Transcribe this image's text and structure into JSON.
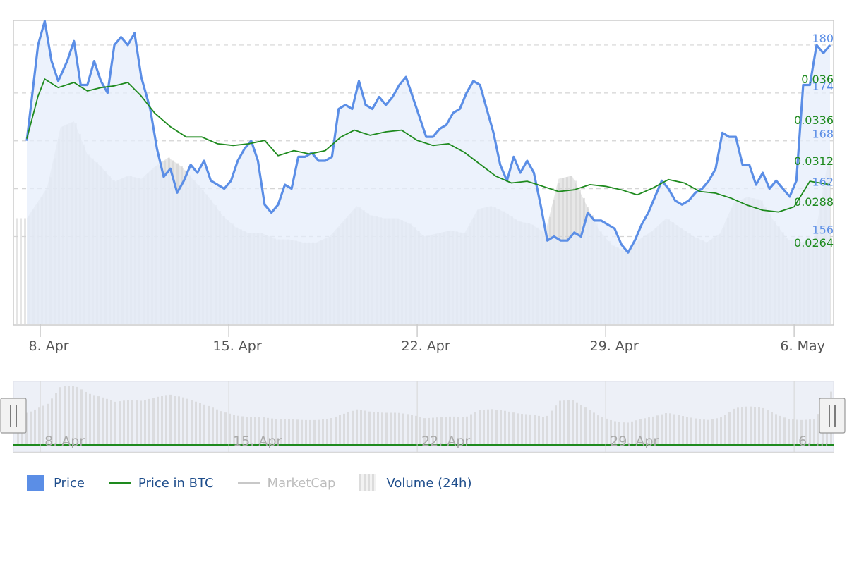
{
  "chart_data": {
    "type": "line",
    "x_axis": {
      "type": "date",
      "ticks": [
        "8. Apr",
        "15. Apr",
        "22. Apr",
        "29. Apr",
        "6. May"
      ],
      "range": [
        "2024-04-07T12:00",
        "2024-05-07T08:00"
      ]
    },
    "y_axes": [
      {
        "series": "Price",
        "ticks": [
          "156",
          "162",
          "168",
          "174",
          "180"
        ],
        "range": [
          145,
          183
        ],
        "color": "#5b8ee6"
      },
      {
        "series": "Price in BTC",
        "ticks": [
          "0.0264",
          "0.0288",
          "0.0312",
          "0.0336",
          "0.036"
        ],
        "range": [
          0.0216,
          0.0394
        ],
        "color": "#1e8a1e"
      }
    ],
    "grid": true,
    "legend_position": "bottom-left",
    "series": [
      {
        "name": "Price",
        "kind": "area-line",
        "color": "#5b8ee6",
        "points": [
          [
            "2024-04-07T12:00",
            168.0
          ],
          [
            "2024-04-07T22:00",
            180.0
          ],
          [
            "2024-04-08T04:00",
            183.0
          ],
          [
            "2024-04-08T10:00",
            178.0
          ],
          [
            "2024-04-08T16:00",
            175.5
          ],
          [
            "2024-04-09T00:00",
            178.0
          ],
          [
            "2024-04-09T06:00",
            180.5
          ],
          [
            "2024-04-09T12:00",
            175.0
          ],
          [
            "2024-04-09T18:00",
            175.0
          ],
          [
            "2024-04-10T00:00",
            178.0
          ],
          [
            "2024-04-10T06:00",
            175.5
          ],
          [
            "2024-04-10T12:00",
            174.0
          ],
          [
            "2024-04-10T18:00",
            180.0
          ],
          [
            "2024-04-11T00:00",
            181.0
          ],
          [
            "2024-04-11T06:00",
            180.0
          ],
          [
            "2024-04-11T12:00",
            181.5
          ],
          [
            "2024-04-11T18:00",
            176.0
          ],
          [
            "2024-04-12T02:00",
            172.0
          ],
          [
            "2024-04-12T08:00",
            167.0
          ],
          [
            "2024-04-12T14:00",
            163.5
          ],
          [
            "2024-04-12T20:00",
            164.5
          ],
          [
            "2024-04-13T02:00",
            161.5
          ],
          [
            "2024-04-13T08:00",
            163.0
          ],
          [
            "2024-04-13T14:00",
            165.0
          ],
          [
            "2024-04-13T20:00",
            164.0
          ],
          [
            "2024-04-14T02:00",
            165.5
          ],
          [
            "2024-04-14T08:00",
            163.0
          ],
          [
            "2024-04-14T14:00",
            162.5
          ],
          [
            "2024-04-14T20:00",
            162.0
          ],
          [
            "2024-04-15T02:00",
            163.0
          ],
          [
            "2024-04-15T08:00",
            165.5
          ],
          [
            "2024-04-15T14:00",
            167.0
          ],
          [
            "2024-04-15T20:00",
            168.0
          ],
          [
            "2024-04-16T02:00",
            165.5
          ],
          [
            "2024-04-16T08:00",
            160.0
          ],
          [
            "2024-04-16T14:00",
            159.0
          ],
          [
            "2024-04-16T20:00",
            160.0
          ],
          [
            "2024-04-17T02:00",
            162.5
          ],
          [
            "2024-04-17T08:00",
            162.0
          ],
          [
            "2024-04-17T14:00",
            166.0
          ],
          [
            "2024-04-17T20:00",
            166.0
          ],
          [
            "2024-04-18T02:00",
            166.5
          ],
          [
            "2024-04-18T08:00",
            165.5
          ],
          [
            "2024-04-18T14:00",
            165.5
          ],
          [
            "2024-04-18T20:00",
            166.0
          ],
          [
            "2024-04-19T02:00",
            172.0
          ],
          [
            "2024-04-19T08:00",
            172.5
          ],
          [
            "2024-04-19T14:00",
            172.0
          ],
          [
            "2024-04-19T20:00",
            175.5
          ],
          [
            "2024-04-20T02:00",
            172.5
          ],
          [
            "2024-04-20T08:00",
            172.0
          ],
          [
            "2024-04-20T14:00",
            173.5
          ],
          [
            "2024-04-20T20:00",
            172.5
          ],
          [
            "2024-04-21T02:00",
            173.5
          ],
          [
            "2024-04-21T08:00",
            175.0
          ],
          [
            "2024-04-21T14:00",
            176.0
          ],
          [
            "2024-04-21T20:00",
            173.5
          ],
          [
            "2024-04-22T02:00",
            171.0
          ],
          [
            "2024-04-22T08:00",
            168.5
          ],
          [
            "2024-04-22T14:00",
            168.5
          ],
          [
            "2024-04-22T20:00",
            169.5
          ],
          [
            "2024-04-23T02:00",
            170.0
          ],
          [
            "2024-04-23T08:00",
            171.5
          ],
          [
            "2024-04-23T14:00",
            172.0
          ],
          [
            "2024-04-23T20:00",
            174.0
          ],
          [
            "2024-04-24T02:00",
            175.5
          ],
          [
            "2024-04-24T08:00",
            175.0
          ],
          [
            "2024-04-24T14:00",
            172.0
          ],
          [
            "2024-04-24T20:00",
            169.0
          ],
          [
            "2024-04-25T02:00",
            165.0
          ],
          [
            "2024-04-25T08:00",
            163.0
          ],
          [
            "2024-04-25T14:00",
            166.0
          ],
          [
            "2024-04-25T20:00",
            164.0
          ],
          [
            "2024-04-26T02:00",
            165.5
          ],
          [
            "2024-04-26T08:00",
            164.0
          ],
          [
            "2024-04-26T14:00",
            160.0
          ],
          [
            "2024-04-26T20:00",
            155.5
          ],
          [
            "2024-04-27T02:00",
            156.0
          ],
          [
            "2024-04-27T08:00",
            155.5
          ],
          [
            "2024-04-27T14:00",
            155.5
          ],
          [
            "2024-04-27T20:00",
            156.5
          ],
          [
            "2024-04-28T02:00",
            156.0
          ],
          [
            "2024-04-28T08:00",
            159.0
          ],
          [
            "2024-04-28T14:00",
            158.0
          ],
          [
            "2024-04-28T20:00",
            158.0
          ],
          [
            "2024-04-29T02:00",
            157.5
          ],
          [
            "2024-04-29T08:00",
            157.0
          ],
          [
            "2024-04-29T14:00",
            155.0
          ],
          [
            "2024-04-29T20:00",
            154.0
          ],
          [
            "2024-04-30T02:00",
            155.5
          ],
          [
            "2024-04-30T08:00",
            157.5
          ],
          [
            "2024-04-30T14:00",
            159.0
          ],
          [
            "2024-04-30T20:00",
            161.0
          ],
          [
            "2024-05-01T02:00",
            163.0
          ],
          [
            "2024-05-01T08:00",
            162.0
          ],
          [
            "2024-05-01T14:00",
            160.5
          ],
          [
            "2024-05-01T20:00",
            160.0
          ],
          [
            "2024-05-02T02:00",
            160.5
          ],
          [
            "2024-05-02T08:00",
            161.5
          ],
          [
            "2024-05-02T14:00",
            162.0
          ],
          [
            "2024-05-02T20:00",
            163.0
          ],
          [
            "2024-05-03T02:00",
            164.5
          ],
          [
            "2024-05-03T08:00",
            169.0
          ],
          [
            "2024-05-03T14:00",
            168.5
          ],
          [
            "2024-05-03T20:00",
            168.5
          ],
          [
            "2024-05-04T02:00",
            165.0
          ],
          [
            "2024-05-04T08:00",
            165.0
          ],
          [
            "2024-05-04T14:00",
            162.5
          ],
          [
            "2024-05-04T20:00",
            164.0
          ],
          [
            "2024-05-05T02:00",
            162.0
          ],
          [
            "2024-05-05T08:00",
            163.0
          ],
          [
            "2024-05-05T14:00",
            162.0
          ],
          [
            "2024-05-05T20:00",
            161.0
          ],
          [
            "2024-05-06T02:00",
            163.0
          ],
          [
            "2024-05-06T08:00",
            175.0
          ],
          [
            "2024-05-06T14:00",
            175.0
          ],
          [
            "2024-05-06T20:00",
            180.0
          ],
          [
            "2024-05-07T02:00",
            179.0
          ],
          [
            "2024-05-07T08:00",
            180.0
          ]
        ]
      },
      {
        "name": "Price in BTC",
        "kind": "line",
        "color": "#1e8a1e",
        "points": [
          [
            "2024-04-07T12:00",
            0.0325
          ],
          [
            "2024-04-07T22:00",
            0.035
          ],
          [
            "2024-04-08T04:00",
            0.036
          ],
          [
            "2024-04-08T16:00",
            0.0355
          ],
          [
            "2024-04-09T06:00",
            0.0358
          ],
          [
            "2024-04-09T18:00",
            0.0353
          ],
          [
            "2024-04-10T06:00",
            0.0355
          ],
          [
            "2024-04-10T18:00",
            0.0356
          ],
          [
            "2024-04-11T06:00",
            0.0358
          ],
          [
            "2024-04-11T18:00",
            0.035
          ],
          [
            "2024-04-12T06:00",
            0.034
          ],
          [
            "2024-04-12T20:00",
            0.0332
          ],
          [
            "2024-04-13T10:00",
            0.0326
          ],
          [
            "2024-04-14T00:00",
            0.0326
          ],
          [
            "2024-04-14T14:00",
            0.0322
          ],
          [
            "2024-04-15T04:00",
            0.0321
          ],
          [
            "2024-04-15T18:00",
            0.0322
          ],
          [
            "2024-04-16T08:00",
            0.0324
          ],
          [
            "2024-04-16T20:00",
            0.0315
          ],
          [
            "2024-04-17T10:00",
            0.0318
          ],
          [
            "2024-04-18T00:00",
            0.0316
          ],
          [
            "2024-04-18T14:00",
            0.0318
          ],
          [
            "2024-04-19T04:00",
            0.0326
          ],
          [
            "2024-04-19T16:00",
            0.033
          ],
          [
            "2024-04-20T06:00",
            0.0327
          ],
          [
            "2024-04-20T20:00",
            0.0329
          ],
          [
            "2024-04-21T10:00",
            0.033
          ],
          [
            "2024-04-22T00:00",
            0.0324
          ],
          [
            "2024-04-22T14:00",
            0.0321
          ],
          [
            "2024-04-23T04:00",
            0.0322
          ],
          [
            "2024-04-23T18:00",
            0.0317
          ],
          [
            "2024-04-24T08:00",
            0.031
          ],
          [
            "2024-04-24T22:00",
            0.0303
          ],
          [
            "2024-04-25T12:00",
            0.0299
          ],
          [
            "2024-04-26T02:00",
            0.03
          ],
          [
            "2024-04-26T16:00",
            0.0297
          ],
          [
            "2024-04-27T06:00",
            0.0294
          ],
          [
            "2024-04-27T20:00",
            0.0295
          ],
          [
            "2024-04-28T10:00",
            0.0298
          ],
          [
            "2024-04-29T00:00",
            0.0297
          ],
          [
            "2024-04-29T14:00",
            0.0295
          ],
          [
            "2024-04-30T04:00",
            0.0292
          ],
          [
            "2024-04-30T18:00",
            0.0296
          ],
          [
            "2024-05-01T08:00",
            0.0301
          ],
          [
            "2024-05-01T22:00",
            0.0299
          ],
          [
            "2024-05-02T12:00",
            0.0294
          ],
          [
            "2024-05-03T02:00",
            0.0293
          ],
          [
            "2024-05-03T16:00",
            0.029
          ],
          [
            "2024-05-04T06:00",
            0.0286
          ],
          [
            "2024-05-04T20:00",
            0.0283
          ],
          [
            "2024-05-05T10:00",
            0.0282
          ],
          [
            "2024-05-06T00:00",
            0.0285
          ],
          [
            "2024-05-06T14:00",
            0.03
          ],
          [
            "2024-05-07T08:00",
            0.0298
          ]
        ]
      },
      {
        "name": "MarketCap",
        "kind": "line",
        "visible": false,
        "points": []
      },
      {
        "name": "Volume (24h)",
        "kind": "area",
        "color": "#d9d9d9",
        "points": [
          [
            "2024-04-07T12:00",
            0.35
          ],
          [
            "2024-04-08T06:00",
            0.45
          ],
          [
            "2024-04-08T18:00",
            0.65
          ],
          [
            "2024-04-09T06:00",
            0.67
          ],
          [
            "2024-04-09T18:00",
            0.56
          ],
          [
            "2024-04-10T06:00",
            0.52
          ],
          [
            "2024-04-10T18:00",
            0.47
          ],
          [
            "2024-04-11T06:00",
            0.49
          ],
          [
            "2024-04-11T18:00",
            0.48
          ],
          [
            "2024-04-12T06:00",
            0.52
          ],
          [
            "2024-04-12T18:00",
            0.55
          ],
          [
            "2024-04-13T06:00",
            0.52
          ],
          [
            "2024-04-13T18:00",
            0.47
          ],
          [
            "2024-04-14T06:00",
            0.42
          ],
          [
            "2024-04-14T18:00",
            0.36
          ],
          [
            "2024-04-15T06:00",
            0.32
          ],
          [
            "2024-04-15T18:00",
            0.3
          ],
          [
            "2024-04-16T06:00",
            0.3
          ],
          [
            "2024-04-16T18:00",
            0.28
          ],
          [
            "2024-04-17T06:00",
            0.28
          ],
          [
            "2024-04-17T18:00",
            0.27
          ],
          [
            "2024-04-18T06:00",
            0.27
          ],
          [
            "2024-04-18T18:00",
            0.29
          ],
          [
            "2024-04-19T06:00",
            0.34
          ],
          [
            "2024-04-19T18:00",
            0.39
          ],
          [
            "2024-04-20T06:00",
            0.36
          ],
          [
            "2024-04-20T18:00",
            0.35
          ],
          [
            "2024-04-21T06:00",
            0.35
          ],
          [
            "2024-04-21T18:00",
            0.33
          ],
          [
            "2024-04-22T06:00",
            0.29
          ],
          [
            "2024-04-22T18:00",
            0.3
          ],
          [
            "2024-04-23T06:00",
            0.31
          ],
          [
            "2024-04-23T18:00",
            0.3
          ],
          [
            "2024-04-24T06:00",
            0.38
          ],
          [
            "2024-04-24T18:00",
            0.39
          ],
          [
            "2024-04-25T06:00",
            0.37
          ],
          [
            "2024-04-25T18:00",
            0.34
          ],
          [
            "2024-04-26T06:00",
            0.33
          ],
          [
            "2024-04-26T18:00",
            0.3
          ],
          [
            "2024-04-27T06:00",
            0.48
          ],
          [
            "2024-04-27T18:00",
            0.49
          ],
          [
            "2024-04-28T06:00",
            0.4
          ],
          [
            "2024-04-28T18:00",
            0.31
          ],
          [
            "2024-04-29T06:00",
            0.26
          ],
          [
            "2024-04-29T18:00",
            0.24
          ],
          [
            "2024-04-30T06:00",
            0.28
          ],
          [
            "2024-04-30T18:00",
            0.31
          ],
          [
            "2024-05-01T06:00",
            0.35
          ],
          [
            "2024-05-01T18:00",
            0.32
          ],
          [
            "2024-05-02T06:00",
            0.29
          ],
          [
            "2024-05-02T18:00",
            0.27
          ],
          [
            "2024-05-03T06:00",
            0.3
          ],
          [
            "2024-05-03T18:00",
            0.4
          ],
          [
            "2024-05-04T06:00",
            0.42
          ],
          [
            "2024-05-04T18:00",
            0.41
          ],
          [
            "2024-05-05T06:00",
            0.34
          ],
          [
            "2024-05-05T18:00",
            0.28
          ],
          [
            "2024-05-06T06:00",
            0.27
          ],
          [
            "2024-05-06T18:00",
            0.28
          ],
          [
            "2024-05-07T08:00",
            0.58
          ]
        ]
      }
    ]
  },
  "legend": {
    "price": "Price",
    "price_btc": "Price in BTC",
    "marketcap": "MarketCap",
    "volume": "Volume (24h)"
  },
  "navigator": {
    "ticks": [
      "8. Apr",
      "15. Apr",
      "22. Apr",
      "29. Apr",
      "6. …"
    ]
  },
  "colors": {
    "price": "#5b8ee6",
    "price_fill": "#e5edfb",
    "btc": "#1e8a1e",
    "volume": "#d9d9d9",
    "grid": "#d4d4d4",
    "axis_text": "#555555",
    "navigator_bg": "#e8ecf5"
  }
}
